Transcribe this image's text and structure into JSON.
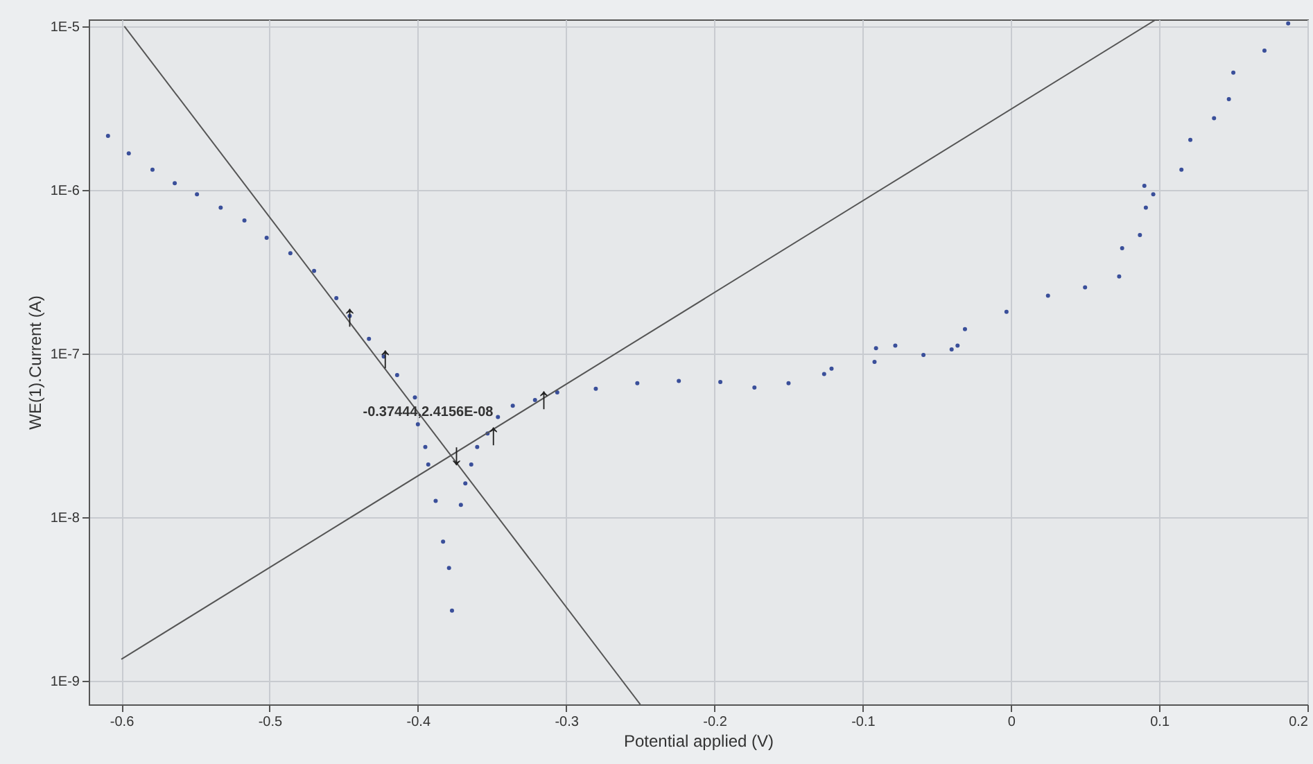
{
  "chart_data": {
    "type": "scatter",
    "xlabel": "Potential applied (V)",
    "ylabel": "WE(1).Current (A)",
    "log": "y",
    "grid": true,
    "xlim": [
      -0.622,
      0.2
    ],
    "xticks": [
      {
        "value": -0.6,
        "label": "-0.6"
      },
      {
        "value": -0.5,
        "label": "-0.5"
      },
      {
        "value": -0.4,
        "label": "-0.4"
      },
      {
        "value": -0.3,
        "label": "-0.3"
      },
      {
        "value": -0.2,
        "label": "-0.2"
      },
      {
        "value": -0.1,
        "label": "-0.1"
      },
      {
        "value": 0,
        "label": "0"
      },
      {
        "value": 0.1,
        "label": "0.1"
      },
      {
        "value": 0.2,
        "label": "0.2"
      }
    ],
    "ylim": [
      7.2e-10,
      1.1e-05
    ],
    "yticks": [
      {
        "value": 1e-09,
        "label": "1E-9"
      },
      {
        "value": 1e-08,
        "label": "1E-8"
      },
      {
        "value": 1e-07,
        "label": "1E-7"
      },
      {
        "value": 1e-06,
        "label": "1E-6"
      },
      {
        "value": 1e-05,
        "label": "1E-5"
      }
    ],
    "series": [
      {
        "marker": "circle",
        "color": "#3a4f9a",
        "x": [
          -0.609,
          -0.595,
          -0.579,
          -0.564,
          -0.549,
          -0.533,
          -0.517,
          -0.502,
          -0.486,
          -0.47,
          -0.455,
          -0.446,
          -0.433,
          -0.423,
          -0.414,
          -0.402,
          -0.4,
          -0.395,
          -0.393,
          -0.388,
          -0.383,
          -0.379,
          -0.377,
          -0.371,
          -0.368,
          -0.364,
          -0.36,
          -0.353,
          -0.346,
          -0.336,
          -0.321,
          -0.306,
          -0.28,
          -0.252,
          -0.224,
          -0.196,
          -0.173,
          -0.15,
          -0.126,
          -0.121,
          -0.092,
          -0.091,
          -0.078,
          -0.059,
          -0.04,
          -0.036,
          -0.031,
          -0.003,
          0.025,
          0.05,
          0.073,
          0.075,
          0.087,
          0.09,
          0.091,
          0.096,
          0.115,
          0.121,
          0.137,
          0.147,
          0.15,
          0.171,
          0.187
        ],
        "values": [
          2.14e-06,
          1.67e-06,
          1.33e-06,
          1.1e-06,
          9.4e-07,
          7.8e-07,
          6.5e-07,
          5.1e-07,
          4.1e-07,
          3.2e-07,
          2.18e-07,
          1.7e-07,
          1.23e-07,
          9.6e-08,
          7.4e-08,
          5.4e-08,
          3.7e-08,
          2.69e-08,
          2.1e-08,
          1.26e-08,
          7.1e-09,
          4.9e-09,
          2.69e-09,
          1.19e-08,
          1.61e-08,
          2.1e-08,
          2.69e-08,
          3.25e-08,
          4.1e-08,
          4.8e-08,
          5.2e-08,
          5.8e-08,
          6.1e-08,
          6.6e-08,
          6.8e-08,
          6.7e-08,
          6.2e-08,
          6.6e-08,
          7.5e-08,
          8.1e-08,
          8.9e-08,
          1.08e-07,
          1.12e-07,
          9.8e-08,
          1.06e-07,
          1.12e-07,
          1.41e-07,
          1.8e-07,
          2.26e-07,
          2.54e-07,
          2.96e-07,
          4.4e-07,
          5.3e-07,
          1.06e-06,
          7.8e-07,
          9.4e-07,
          1.33e-06,
          2.02e-06,
          2.74e-06,
          3.58e-06,
          5.2e-06,
          7.1e-06,
          1.04e-05
        ]
      },
      {
        "type": "line",
        "color": "#555555",
        "x": [
          -0.598,
          -0.25
        ],
        "values": [
          1e-05,
          7.2e-10
        ]
      },
      {
        "type": "line",
        "color": "#555555",
        "x": [
          -0.6,
          0.098
        ],
        "values": [
          1.36e-09,
          1.1e-05
        ]
      }
    ],
    "annotations": [
      {
        "text": "-0.37444,2.4156E-08",
        "x": -0.37444,
        "y": 2.4156e-08
      },
      {
        "text": "↑",
        "x": -0.446,
        "y": 1.7e-07
      },
      {
        "text": "↑",
        "x": -0.422,
        "y": 9.4e-08
      },
      {
        "text": "↓",
        "x": -0.374,
        "y": 2.4156e-08
      },
      {
        "text": "↑",
        "x": -0.349,
        "y": 3.2e-08
      },
      {
        "text": "↑",
        "x": -0.315,
        "y": 5.3e-08
      }
    ]
  }
}
